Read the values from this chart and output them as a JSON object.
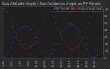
{
  "title": "Sun Altitude Angle / Sun Incidence Angle on PV Panels",
  "legend_labels": [
    "HOC? Sun Alt (deg)",
    "Incidence Angle (deg)"
  ],
  "legend_colors": [
    "#0055ff",
    "#ff0000"
  ],
  "background_color": "#2a2a2a",
  "plot_bg_color": "#1e1e1e",
  "grid_color": "#484848",
  "text_color": "#cccccc",
  "ylim": [
    0,
    75
  ],
  "title_fontsize": 3.8,
  "tick_fontsize": 2.8,
  "blue_x": [
    0,
    1,
    2,
    3,
    4,
    5,
    6,
    7,
    8,
    9,
    10,
    11,
    12,
    13,
    14,
    15,
    16,
    17,
    18,
    19,
    20,
    21,
    22,
    23,
    24,
    25,
    26,
    27,
    28,
    29,
    30,
    31,
    32,
    33,
    34,
    35,
    36,
    37,
    38,
    39,
    40,
    41,
    42,
    43,
    44,
    45,
    46,
    47
  ],
  "blue_y": [
    2,
    5,
    10,
    16,
    23,
    30,
    36,
    41,
    44,
    46,
    47,
    46,
    44,
    41,
    36,
    30,
    23,
    16,
    10,
    5,
    2,
    1,
    3,
    7,
    13,
    20,
    27,
    34,
    40,
    44,
    47,
    49,
    50,
    49,
    47,
    44,
    40,
    34,
    27,
    20,
    13,
    7,
    3,
    1,
    2,
    4,
    6,
    8
  ],
  "red_x": [
    0,
    1,
    2,
    3,
    4,
    5,
    6,
    7,
    8,
    9,
    10,
    11,
    12,
    13,
    14,
    15,
    16,
    17,
    18,
    19,
    20,
    21,
    22,
    23,
    24,
    25,
    26,
    27,
    28,
    29,
    30,
    31,
    32,
    33,
    34,
    35,
    36,
    37,
    38,
    39,
    40,
    41,
    42,
    43,
    44,
    45,
    46,
    47
  ],
  "red_y": [
    72,
    68,
    62,
    54,
    46,
    38,
    31,
    25,
    20,
    17,
    15,
    14,
    15,
    17,
    20,
    25,
    31,
    38,
    46,
    54,
    62,
    68,
    71,
    67,
    60,
    52,
    44,
    37,
    30,
    24,
    19,
    16,
    14,
    13,
    14,
    16,
    19,
    24,
    30,
    37,
    44,
    52,
    60,
    67,
    71,
    68,
    65,
    62
  ],
  "xtick_positions": [
    0,
    4,
    8,
    12,
    16,
    20,
    24,
    28,
    32,
    36,
    40,
    44
  ],
  "xtick_labels": [
    "4:45",
    "6:15",
    "7:45",
    "9:15",
    "10:45",
    "12:15",
    "13:45",
    "15:15",
    "16:45",
    "18:15",
    "19:45",
    "21:15"
  ],
  "ytick_positions": [
    0,
    10,
    20,
    30,
    40,
    50,
    60,
    70
  ],
  "ytick_labels": [
    "0",
    "10",
    "20",
    "30",
    "40",
    "50",
    "60",
    "70"
  ]
}
